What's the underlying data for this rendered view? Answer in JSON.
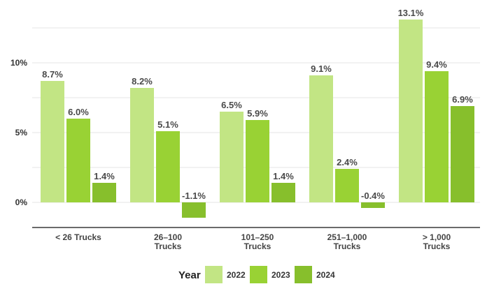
{
  "chart_data": {
    "type": "bar",
    "categories": [
      [
        "< 26 Trucks"
      ],
      [
        "26–100",
        "Trucks"
      ],
      [
        "101–250",
        "Trucks"
      ],
      [
        "251–1,000",
        "Trucks"
      ],
      [
        "> 1,000",
        "Trucks"
      ]
    ],
    "series": [
      {
        "name": "2022",
        "color": "#c2e584",
        "values": [
          8.7,
          8.2,
          6.5,
          9.1,
          13.1
        ],
        "labels": [
          "8.7%",
          "8.2%",
          "6.5%",
          "9.1%",
          "13.1%"
        ]
      },
      {
        "name": "2023",
        "color": "#99d234",
        "values": [
          6.0,
          5.1,
          5.9,
          2.4,
          9.4
        ],
        "labels": [
          "6.0%",
          "5.1%",
          "5.9%",
          "2.4%",
          "9.4%"
        ]
      },
      {
        "name": "2024",
        "color": "#87bf2c",
        "values": [
          1.4,
          -1.1,
          1.4,
          -0.4,
          6.9
        ],
        "labels": [
          "1.4%",
          "-1.1%",
          "1.4%",
          "-0.4%",
          "6.9%"
        ]
      }
    ],
    "yticks": [
      {
        "v": 0,
        "label": "0%"
      },
      {
        "v": 5,
        "label": "5%"
      },
      {
        "v": 10,
        "label": "10%"
      }
    ],
    "ylim": [
      -1.8,
      13.3
    ],
    "grid": true,
    "legend": {
      "title": "Year",
      "position": "bottom"
    }
  }
}
